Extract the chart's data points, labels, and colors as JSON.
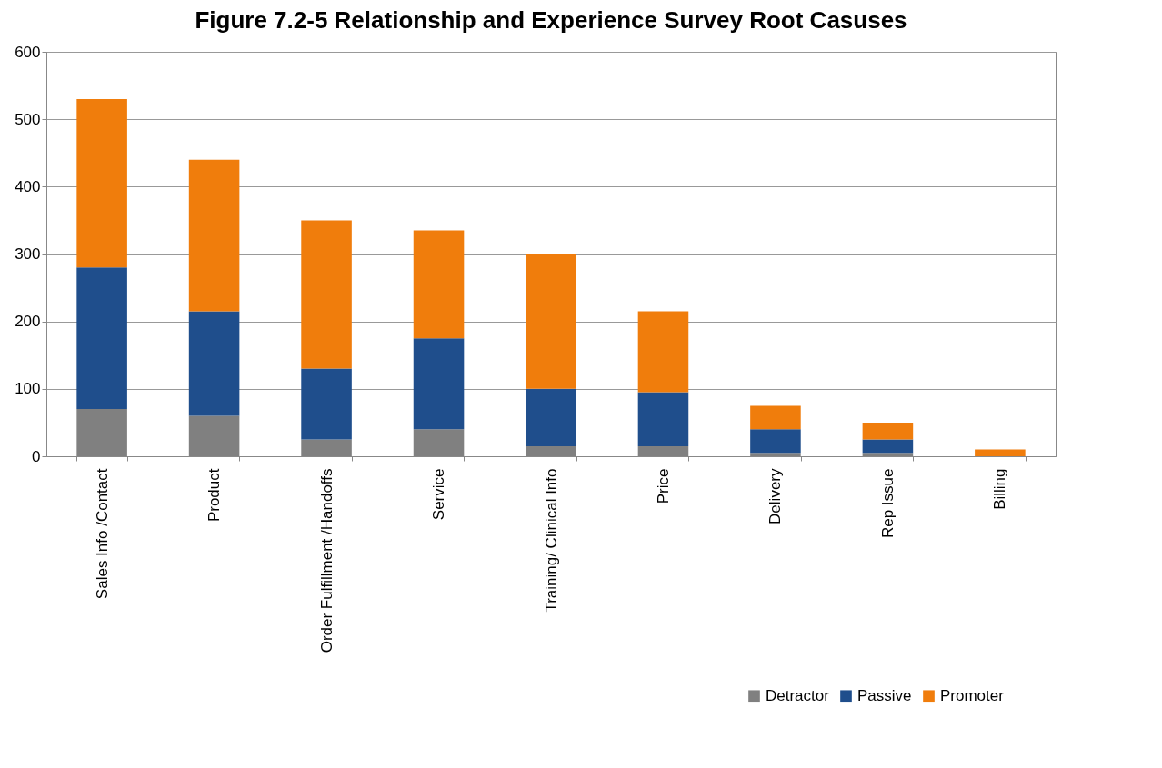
{
  "chart_data": {
    "type": "bar",
    "title": "Figure 7.2-5 Relationship and Experience Survey Root Casuses",
    "stacked": true,
    "categories": [
      "Sales Info /Contact",
      "Product",
      "Order Fulfillment /Handoffs",
      "Service",
      "Training/ Clinical Info",
      "Price",
      "Delivery",
      "Rep Issue",
      "Billing"
    ],
    "series": [
      {
        "name": "Detractor",
        "color": "#808080",
        "values": [
          70,
          60,
          25,
          40,
          15,
          15,
          5,
          5,
          0
        ]
      },
      {
        "name": "Passive",
        "color": "#1f4e8c",
        "values": [
          210,
          155,
          105,
          135,
          85,
          80,
          35,
          20,
          0
        ]
      },
      {
        "name": "Promoter",
        "color": "#f07d0c",
        "values": [
          250,
          225,
          220,
          160,
          200,
          120,
          35,
          25,
          10
        ]
      }
    ],
    "ylim": [
      0,
      600
    ],
    "yticks": [
      0,
      100,
      200,
      300,
      400,
      500,
      600
    ],
    "grid": "y",
    "legend": "bottom right"
  }
}
